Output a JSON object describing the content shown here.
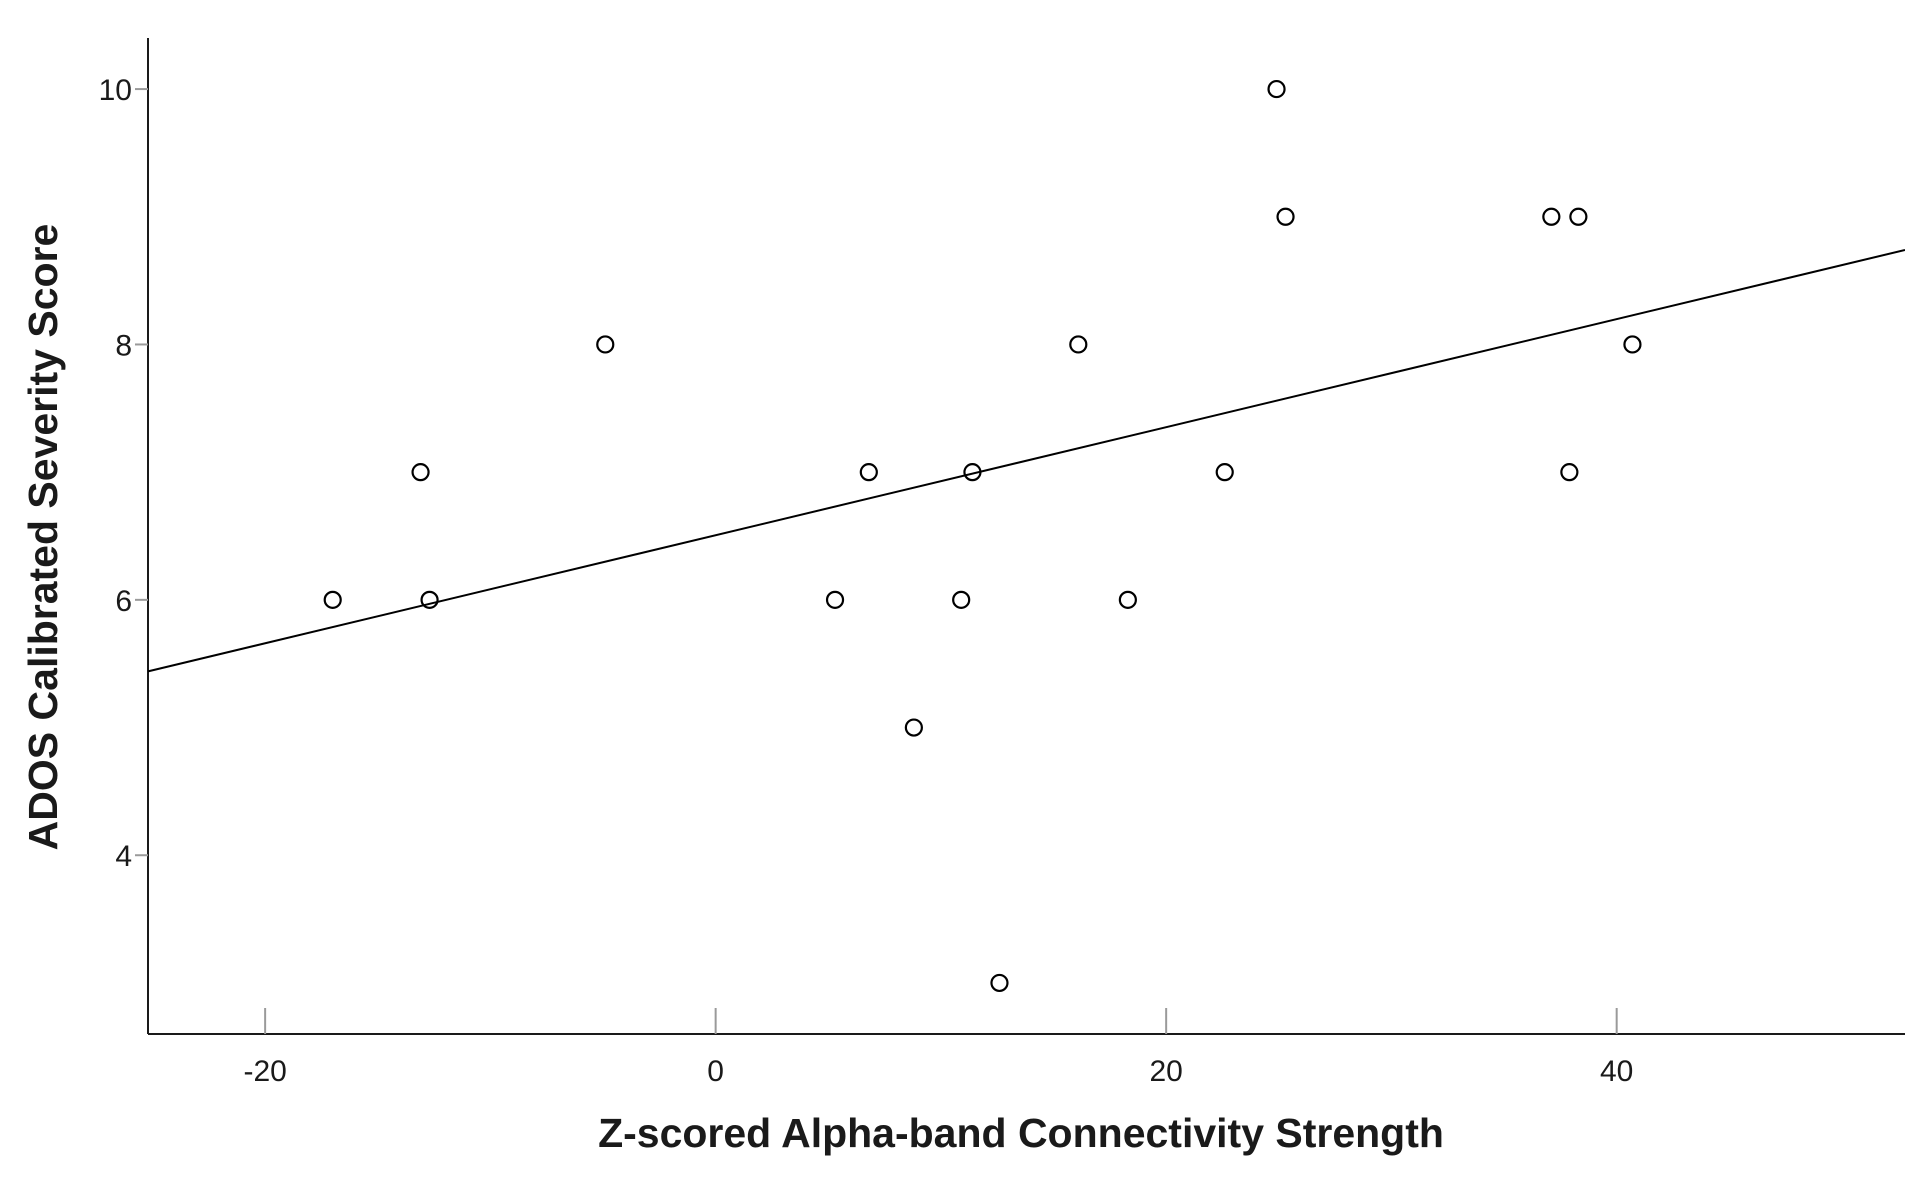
{
  "chart_data": {
    "type": "scatter",
    "xlabel": "Z-scored Alpha-band Connectivity Strength",
    "ylabel": "ADOS Calibrated Severity Score",
    "xlim": [
      -25.2,
      52.8
    ],
    "ylim": [
      2.6,
      10.4
    ],
    "xticks": [
      -20,
      0,
      20,
      40
    ],
    "yticks": [
      4,
      6,
      8,
      10
    ],
    "grid": false,
    "legend": "none",
    "series": [
      {
        "points": [
          {
            "x": -17.0,
            "y": 6
          },
          {
            "x": -13.1,
            "y": 7
          },
          {
            "x": -12.7,
            "y": 6
          },
          {
            "x": -4.9,
            "y": 8
          },
          {
            "x": 5.3,
            "y": 6
          },
          {
            "x": 6.8,
            "y": 7
          },
          {
            "x": 8.8,
            "y": 5
          },
          {
            "x": 10.9,
            "y": 6
          },
          {
            "x": 11.4,
            "y": 7
          },
          {
            "x": 12.6,
            "y": 3
          },
          {
            "x": 16.1,
            "y": 8
          },
          {
            "x": 18.3,
            "y": 6
          },
          {
            "x": 22.6,
            "y": 7
          },
          {
            "x": 24.9,
            "y": 10
          },
          {
            "x": 25.3,
            "y": 9
          },
          {
            "x": 37.1,
            "y": 9
          },
          {
            "x": 37.9,
            "y": 7
          },
          {
            "x": 38.3,
            "y": 9
          },
          {
            "x": 40.7,
            "y": 8
          }
        ]
      }
    ],
    "fit_line": {
      "x": [
        -25.2,
        52.8
      ],
      "y": [
        5.44,
        8.74
      ]
    },
    "colors": {
      "points": "#000000",
      "line": "#000000",
      "axes": "#1a1a1a"
    }
  }
}
